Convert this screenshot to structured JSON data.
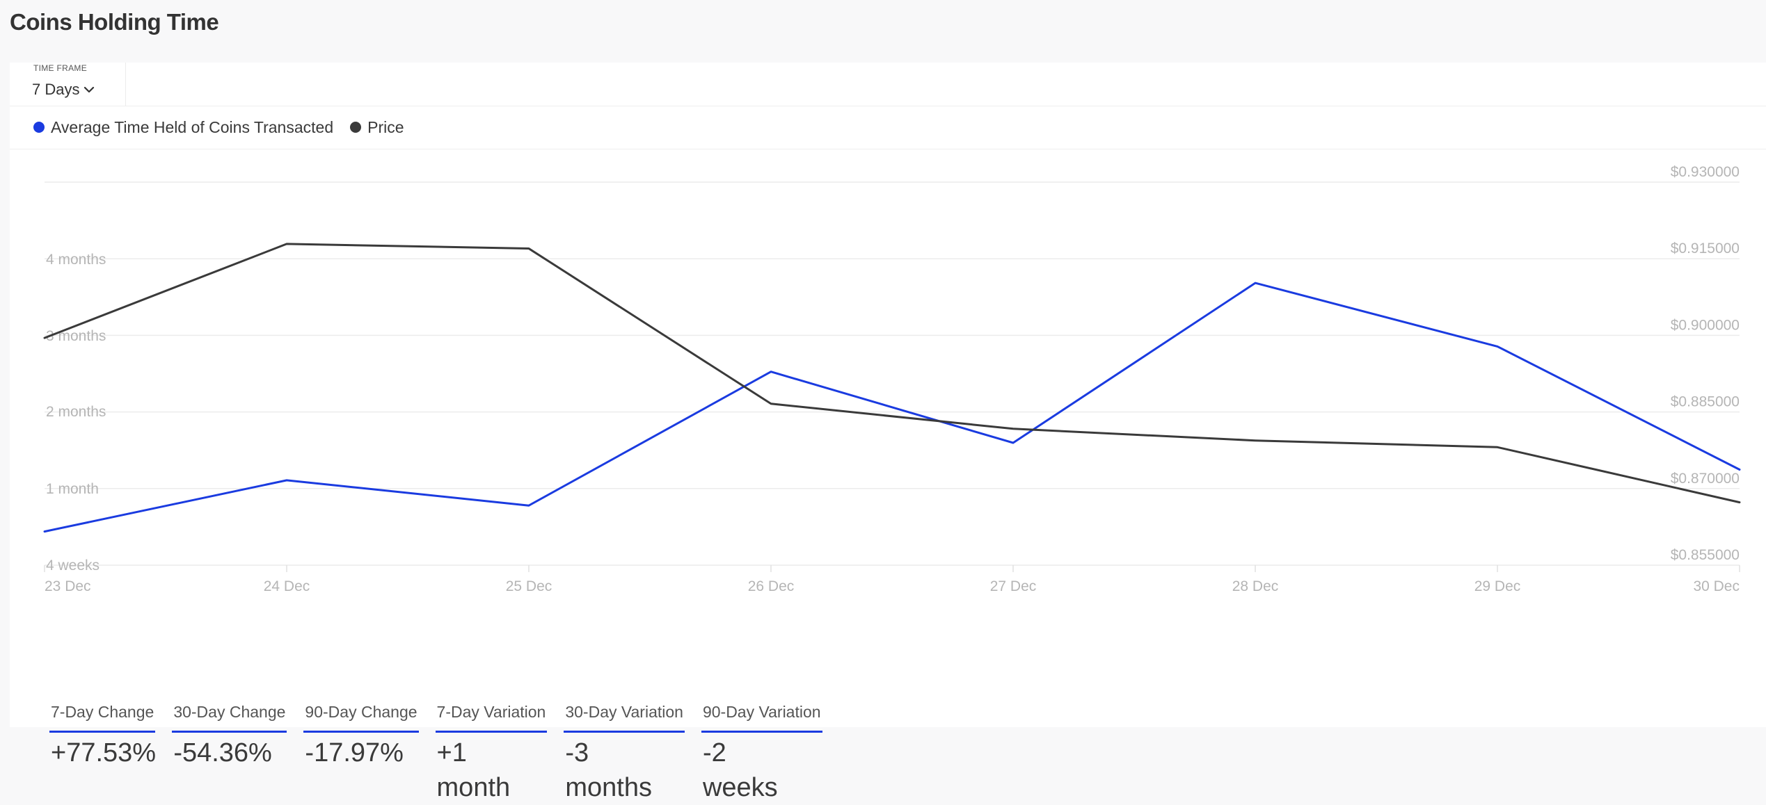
{
  "title": "Coins Holding Time",
  "timeframe": {
    "label": "TIME FRAME",
    "value": "7 Days"
  },
  "legend": [
    {
      "label": "Average Time Held of Coins Transacted",
      "color": "#1a3be0"
    },
    {
      "label": "Price",
      "color": "#3a3a3a"
    }
  ],
  "tabs": [
    {
      "label": "7-Day Change",
      "value": "+77.53%"
    },
    {
      "label": "30-Day Change",
      "value": "-54.36%"
    },
    {
      "label": "90-Day Change",
      "value": "-17.97%"
    },
    {
      "label": "7-Day Variation",
      "value": "+1 month"
    },
    {
      "label": "30-Day Variation",
      "value": "-3 months"
    },
    {
      "label": "90-Day Variation",
      "value": "-2 weeks"
    }
  ],
  "chart_data": {
    "type": "line",
    "x": [
      "23 Dec",
      "24 Dec",
      "25 Dec",
      "26 Dec",
      "27 Dec",
      "28 Dec",
      "29 Dec",
      "30 Dec"
    ],
    "left_axis": {
      "ticks": [
        "4 weeks",
        "1 month",
        "2 months",
        "3 months",
        "4 months"
      ],
      "range": [
        0,
        5
      ]
    },
    "right_axis": {
      "ticks": [
        "$0.855000",
        "$0.870000",
        "$0.885000",
        "$0.900000",
        "$0.915000",
        "$0.930000"
      ],
      "range": [
        0.855,
        0.93
      ]
    },
    "grid": true,
    "series": [
      {
        "name": "Average Time Held of Coins Transacted",
        "axis": "left",
        "color": "#1a3be0",
        "values": [
          0.44,
          1.11,
          0.78,
          2.53,
          1.6,
          3.69,
          2.86,
          1.25
        ]
      },
      {
        "name": "Price",
        "axis": "right",
        "color": "#3a3a3a",
        "values": [
          0.8995,
          0.9179,
          0.917,
          0.8866,
          0.8817,
          0.8794,
          0.8781,
          0.8673
        ]
      }
    ]
  }
}
